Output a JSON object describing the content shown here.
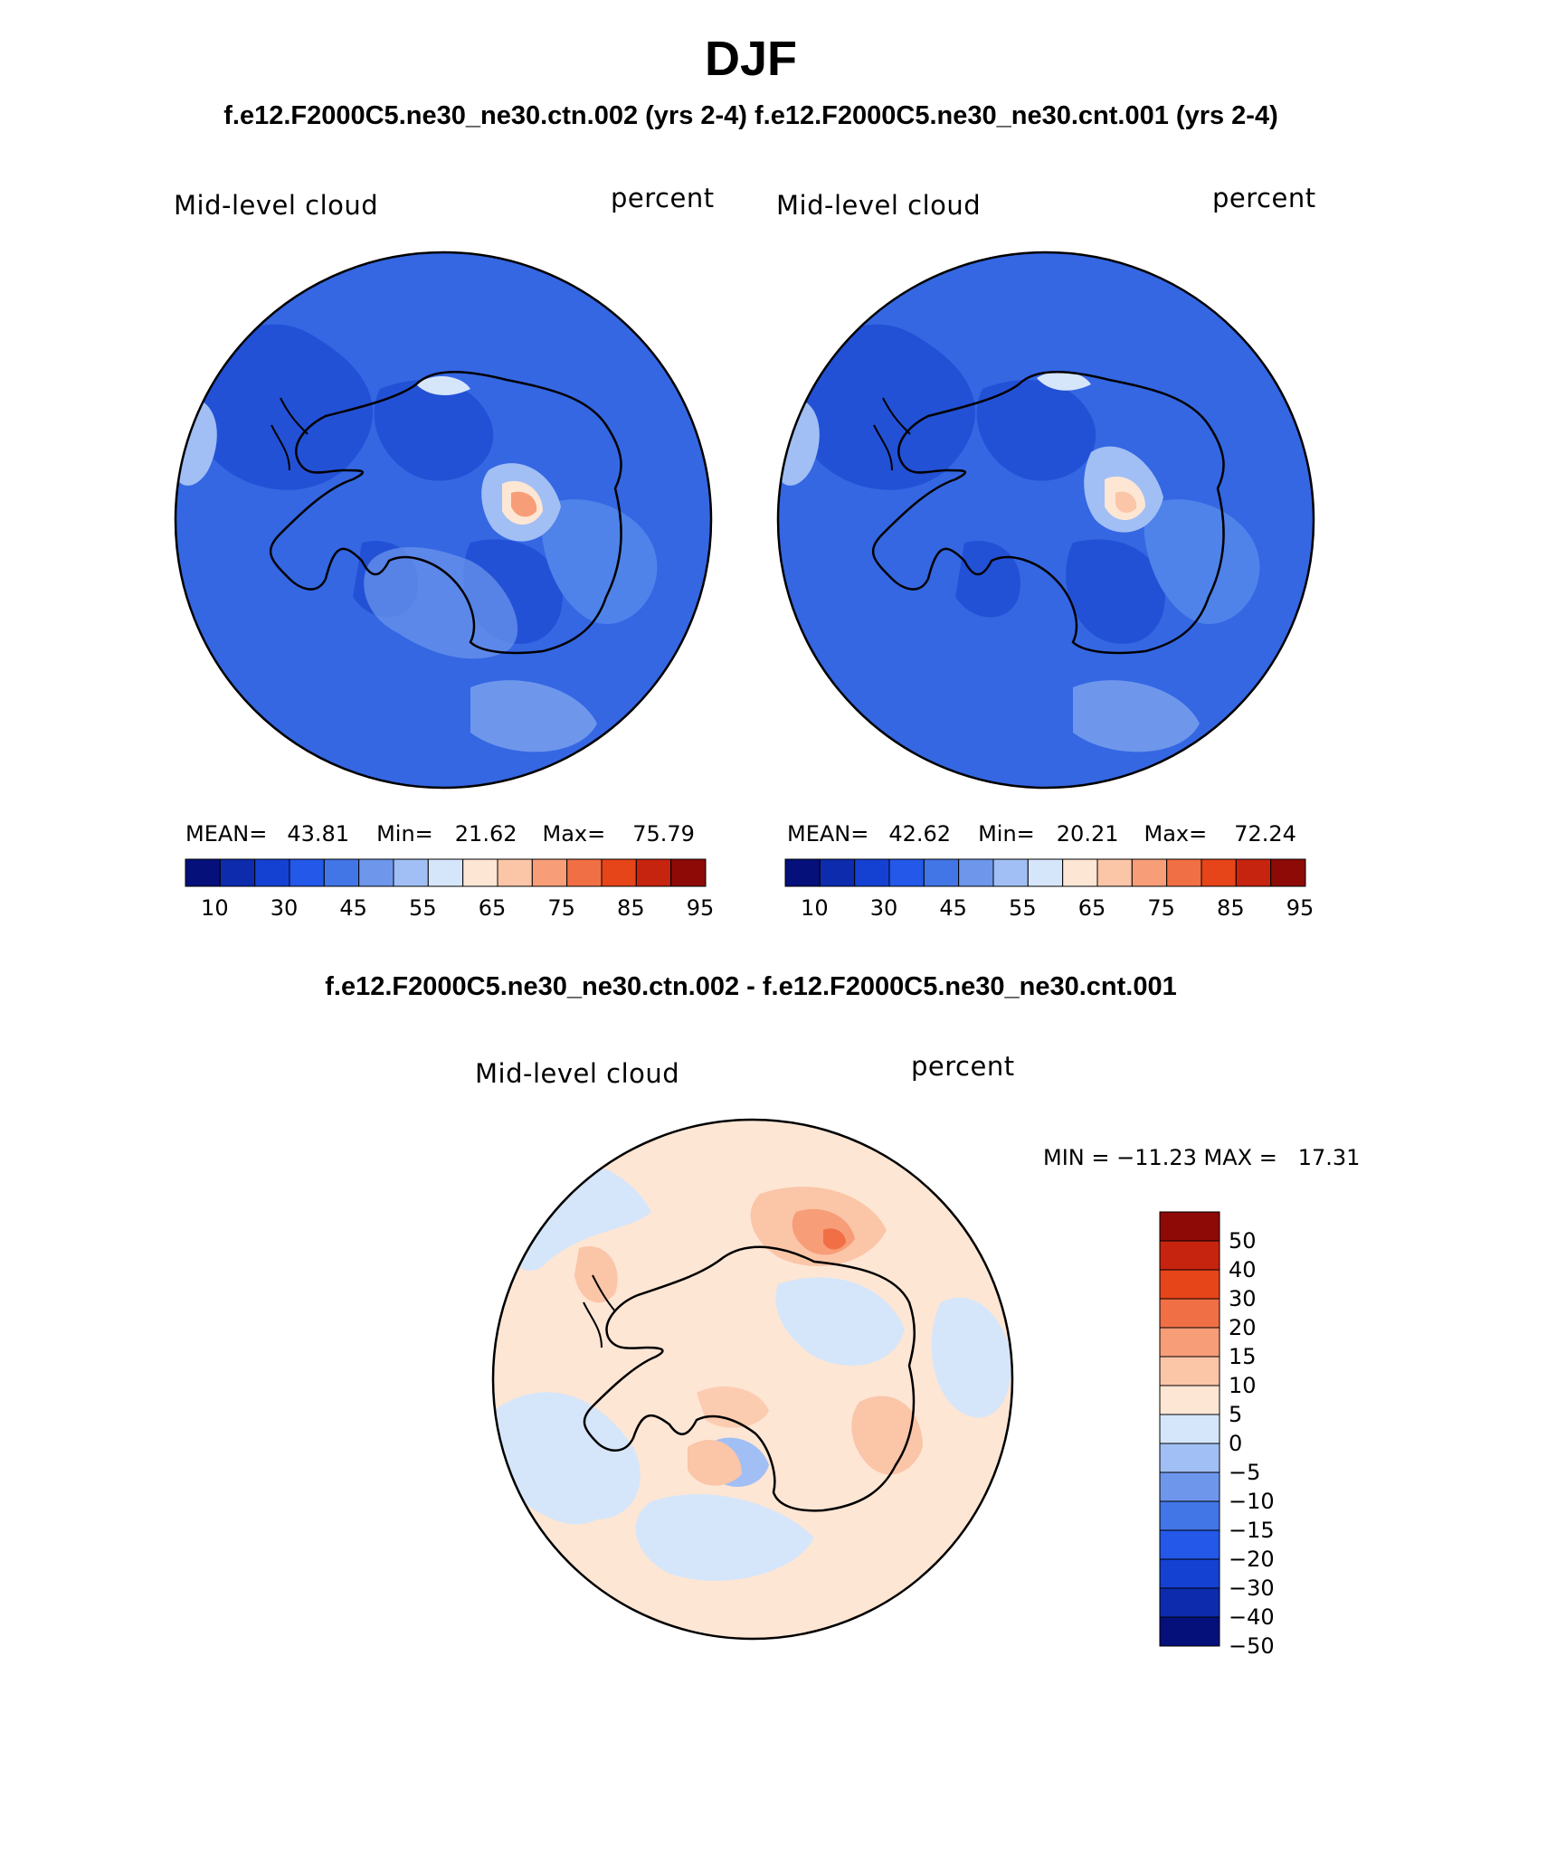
{
  "title": "DJF",
  "subtitle": "f.e12.F2000C5.ne30_ne30.ctn.002 (yrs 2-4) f.e12.F2000C5.ne30_ne30.cnt.001 (yrs 2-4)",
  "difference_title": "f.e12.F2000C5.ne30_ne30.ctn.002 - f.e12.F2000C5.ne30_ne30.cnt.001",
  "colors": {
    "abs_palette": [
      "#05107a",
      "#0c2cad",
      "#1541d3",
      "#2358e8",
      "#4276e6",
      "#6e97ec",
      "#a1bff4",
      "#d6e6fa",
      "#fde6d4",
      "#fbc5a8",
      "#f79d78",
      "#f16f45",
      "#e64419",
      "#c72410",
      "#8e0a07"
    ],
    "diff_palette": [
      "#05107a",
      "#0c2cad",
      "#1541d3",
      "#2358e8",
      "#4276e6",
      "#6e97ec",
      "#a1bff4",
      "#d6e6fa",
      "#fde6d4",
      "#fbc5a8",
      "#f79d78",
      "#f16f45",
      "#e64419",
      "#c72410",
      "#8e0a07"
    ],
    "background_field_ctn": "#3567e3",
    "background_field_diff": "#fde6d4"
  },
  "chart_data": [
    {
      "type": "polar-contour-map",
      "name": "ctn",
      "label_left": "Mid-level cloud",
      "label_right": "percent",
      "stats": {
        "mean_label": "MEAN=",
        "mean": "43.81",
        "min_label": "Min=",
        "min": "21.62",
        "max_label": "Max=",
        "max": "75.79"
      },
      "colorbar_ticks": [
        "10",
        "30",
        "45",
        "55",
        "65",
        "75",
        "85",
        "95"
      ]
    },
    {
      "type": "polar-contour-map",
      "name": "cnt",
      "label_left": "Mid-level cloud",
      "label_right": "percent",
      "stats": {
        "mean_label": "MEAN=",
        "mean": "42.62",
        "min_label": "Min=",
        "min": "20.21",
        "max_label": "Max=",
        "max": "72.24"
      },
      "colorbar_ticks": [
        "10",
        "30",
        "45",
        "55",
        "65",
        "75",
        "85",
        "95"
      ]
    },
    {
      "type": "polar-contour-map",
      "name": "difference",
      "label_left": "Mid-level cloud",
      "label_right": "percent",
      "stats_text": "MIN = −11.23 MAX =   17.31",
      "colorbar_ticks": [
        "50",
        "40",
        "30",
        "20",
        "15",
        "10",
        "5",
        "0",
        "−5",
        "−10",
        "−15",
        "−20",
        "−30",
        "−40",
        "−50"
      ]
    }
  ]
}
